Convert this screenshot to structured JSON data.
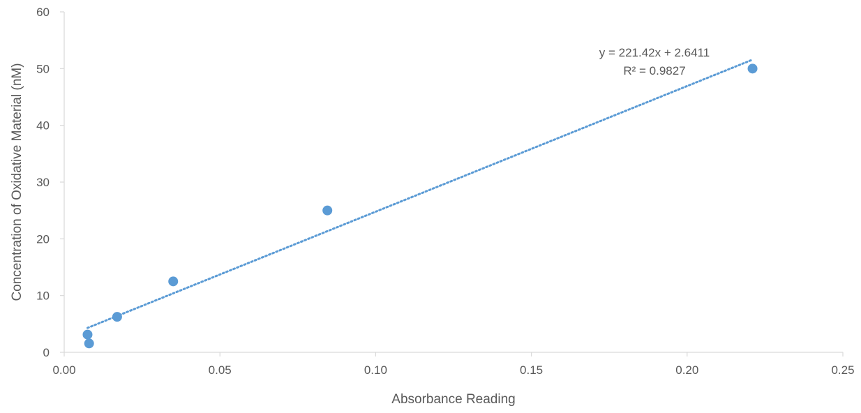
{
  "chart_data": {
    "type": "scatter",
    "title": "",
    "xlabel": "Absorbance Reading",
    "ylabel": "Concentration of Oxidative Material (nM)",
    "xlim": [
      0,
      0.25
    ],
    "ylim": [
      0,
      60
    ],
    "x_ticks": [
      "0.00",
      "0.05",
      "0.10",
      "0.15",
      "0.20",
      "0.25"
    ],
    "y_ticks": [
      "0",
      "10",
      "20",
      "30",
      "40",
      "50",
      "60"
    ],
    "grid": false,
    "legend": "none",
    "series": [
      {
        "color": "#5b9bd5",
        "points": [
          {
            "x": 0.0075,
            "y": 3.125
          },
          {
            "x": 0.008,
            "y": 1.5625
          },
          {
            "x": 0.017,
            "y": 6.25
          },
          {
            "x": 0.035,
            "y": 12.5
          },
          {
            "x": 0.0845,
            "y": 25
          },
          {
            "x": 0.221,
            "y": 50
          }
        ]
      }
    ],
    "trendline": {
      "type": "linear",
      "style": "dotted",
      "color": "#5b9bd5",
      "slope": 221.42,
      "intercept": 2.6411,
      "x_range": [
        0.0075,
        0.221
      ],
      "equation_label": "y = 221.42x + 2.6411",
      "r2_label": "R² = 0.9827"
    }
  }
}
